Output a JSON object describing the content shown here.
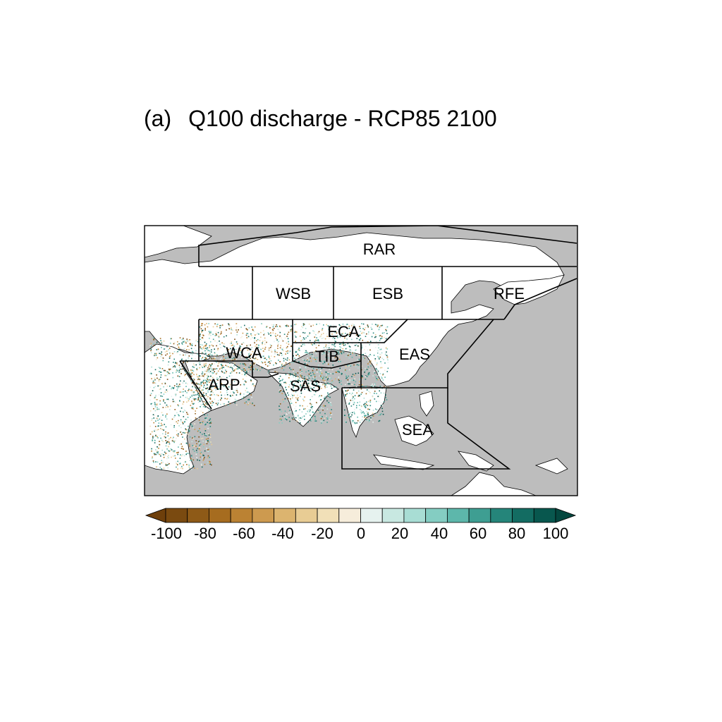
{
  "title": {
    "panel": "(a)",
    "text": "Q100 discharge - RCP85 2100"
  },
  "regions": [
    {
      "id": "RAR",
      "label": "RAR"
    },
    {
      "id": "WSB",
      "label": "WSB"
    },
    {
      "id": "ESB",
      "label": "ESB"
    },
    {
      "id": "RFE",
      "label": "RFE"
    },
    {
      "id": "ECA",
      "label": "ECA"
    },
    {
      "id": "WCA",
      "label": "WCA"
    },
    {
      "id": "TIB",
      "label": "TIB"
    },
    {
      "id": "EAS",
      "label": "EAS"
    },
    {
      "id": "ARP",
      "label": "ARP"
    },
    {
      "id": "SAS",
      "label": "SAS"
    },
    {
      "id": "SEA",
      "label": "SEA"
    }
  ],
  "colorbar": {
    "ticks": [
      "-100",
      "-80",
      "-60",
      "-40",
      "-20",
      "0",
      "20",
      "40",
      "60",
      "80",
      "100"
    ],
    "colors": [
      "#7a4a10",
      "#8e5a17",
      "#a66c1f",
      "#bb8233",
      "#cd9a4f",
      "#dcb46f",
      "#e8cc94",
      "#f1e0b8",
      "#f6eddb",
      "#e6f2ef",
      "#c8e8e1",
      "#a8ddd4",
      "#84cdc2",
      "#5db7ab",
      "#3e9e92",
      "#25857a",
      "#136c62",
      "#08574e"
    ],
    "low_arrow_color": "#6e3f0b",
    "high_arrow_color": "#04473f"
  },
  "colors": {
    "land": "#bdbdbd",
    "ocean": "#bdbdbd",
    "white_land": "#ffffff",
    "frame": "#000000"
  }
}
